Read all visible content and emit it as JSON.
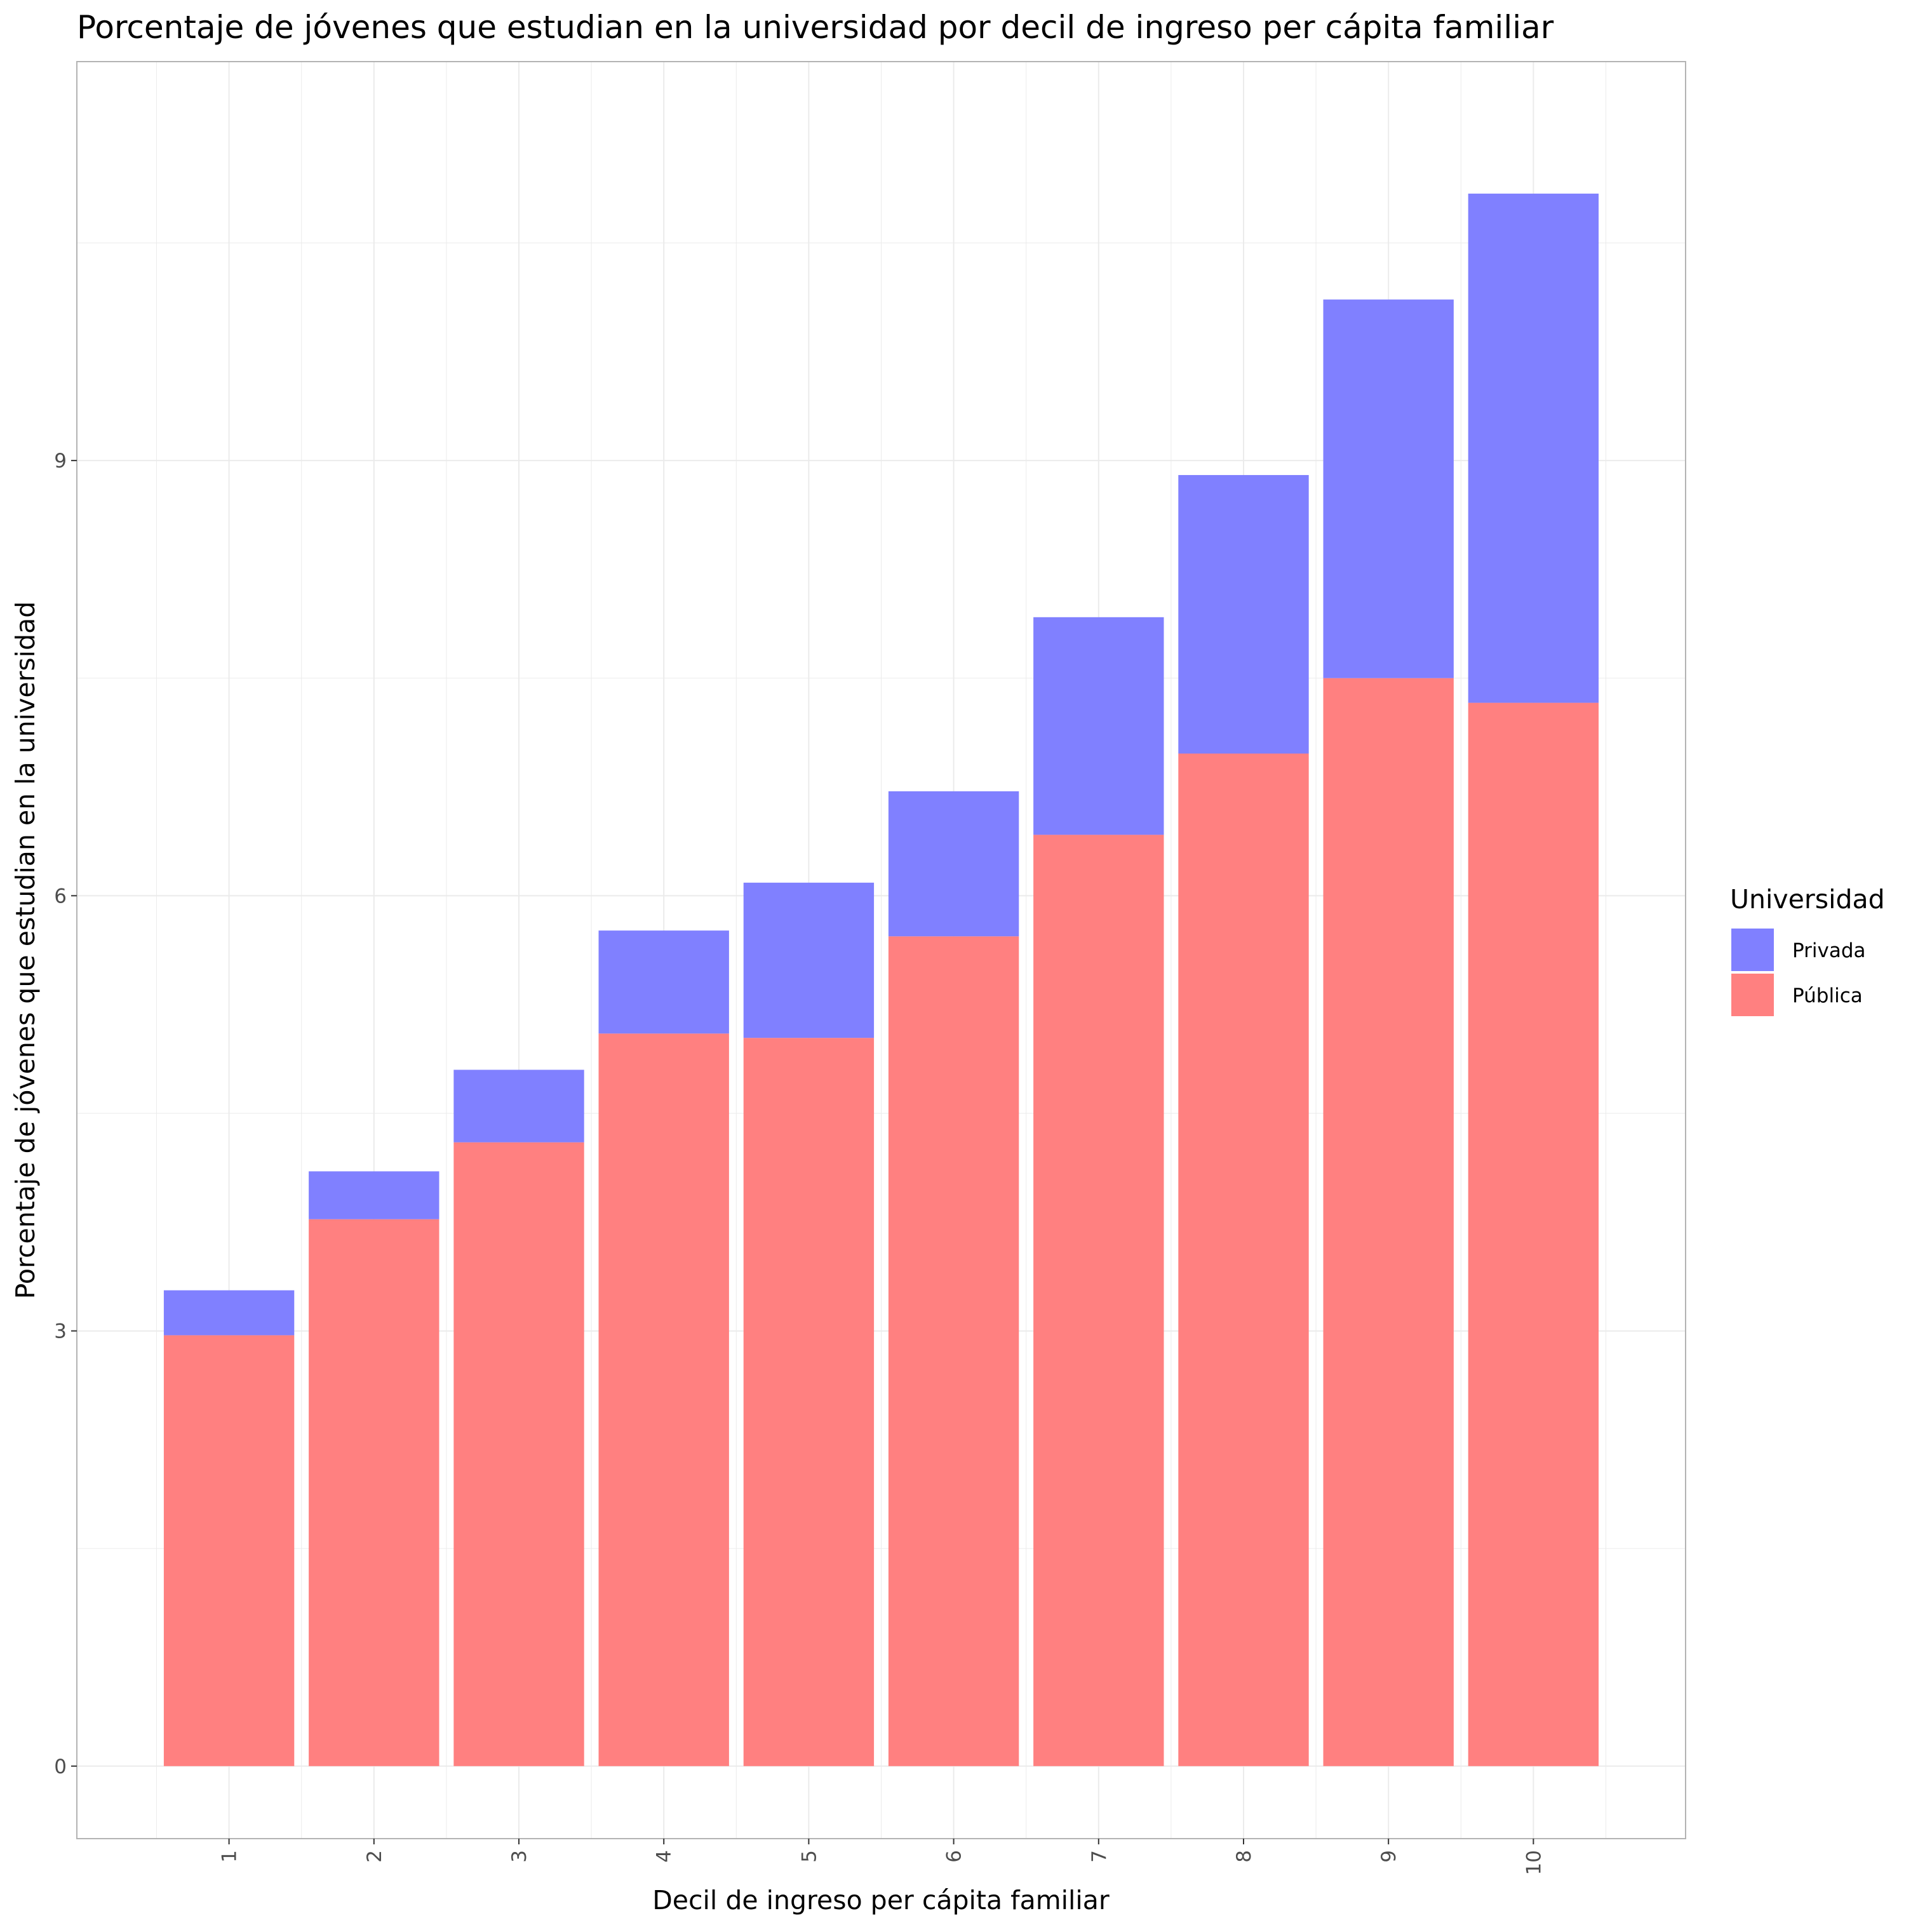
{
  "chart_data": {
    "type": "bar",
    "stacked": true,
    "title": "Porcentaje de jóvenes que estudian en la universidad por decil de ingreso per cápita familiar",
    "xlabel": "Decil de ingreso per cápita familiar",
    "ylabel": "Porcentaje de jóvenes que estudian en la universidad",
    "categories": [
      "1",
      "2",
      "3",
      "4",
      "5",
      "6",
      "7",
      "8",
      "9",
      "10"
    ],
    "series": [
      {
        "name": "Pública",
        "color": "#ff8080",
        "values": [
          2.97,
          3.77,
          4.3,
          5.05,
          5.02,
          5.72,
          6.42,
          6.98,
          7.5,
          7.33
        ]
      },
      {
        "name": "Privada",
        "color": "#8080ff",
        "values": [
          0.31,
          0.33,
          0.5,
          0.71,
          1.07,
          1.0,
          1.5,
          1.92,
          2.61,
          3.51
        ]
      }
    ],
    "yticks": [
      "0",
      "3",
      "6",
      "9"
    ],
    "ylim": [
      -0.5,
      11.75
    ],
    "grid": true,
    "legend": {
      "title": "Universidad",
      "position": "right",
      "entries": [
        "Privada",
        "Pública"
      ]
    }
  }
}
